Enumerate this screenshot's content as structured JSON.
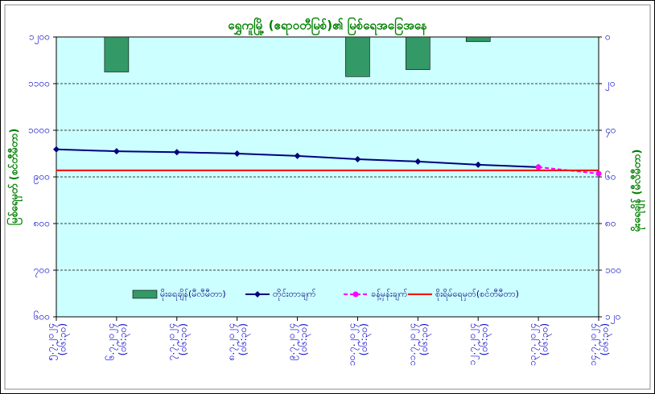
{
  "chart_data": {
    "type": "combo",
    "title": "ရွှေကူမြို့ (ဧရာဝတီမြစ်)၏ မြစ်ရေအခြေအနေ",
    "y_label": "မြစ်ရေမှတ် (စင်တီမီတာ)",
    "y2_label": "မိုးရေချိန် (မီလီမီတာ)",
    "categories": [
      "၅.၇.၂၀၂၄",
      "၆.၇.၂၀၂၄",
      "၇.၇.၂၀၂၄",
      "၈.၇.၂၀၂၄",
      "၉.၇.၂၀၂၄",
      "၁၀.၇.၂၀၂၄",
      "၁၁.၇.၂၀၂၄",
      "၁၂.၇.၂၀၂၄",
      "၁၃.၇.၂၀၂၄",
      "၁၄.၇.၂၀၂၄"
    ],
    "times": [
      "(၀၆:၃၀)",
      "(၀၆:၃၀)",
      "(၀၆:၃၀)",
      "(၀၆:၃၀)",
      "(၀၆:၃၀)",
      "(၀၆:၃၀)",
      "(၀၆:၃၀)",
      "(၀၆:၃၀)",
      "(၀၆:၃၀)",
      "(၀၆:၃၀)"
    ],
    "ylim": [
      600,
      1200
    ],
    "yticks": [
      {
        "value": 600,
        "label": "၆၀၀"
      },
      {
        "value": 700,
        "label": "၇၀၀"
      },
      {
        "value": 800,
        "label": "၈၀၀"
      },
      {
        "value": 900,
        "label": "၉၀၀"
      },
      {
        "value": 1000,
        "label": "၁၀၀၀"
      },
      {
        "value": 1100,
        "label": "၁၁၀၀"
      },
      {
        "value": 1200,
        "label": "၁၂၀၀"
      }
    ],
    "y2lim": [
      0,
      120
    ],
    "y2_inverted": true,
    "y2ticks": [
      {
        "value": 0,
        "label": "၀"
      },
      {
        "value": 20,
        "label": "၂၀"
      },
      {
        "value": 40,
        "label": "၄၀"
      },
      {
        "value": 60,
        "label": "၆၀"
      },
      {
        "value": 80,
        "label": "၈၀"
      },
      {
        "value": 100,
        "label": "၁၀၀"
      },
      {
        "value": 120,
        "label": "၁၂၀"
      }
    ],
    "grid": true,
    "series": [
      {
        "name": "မိုးရေချိန်(မီလီမီတာ)",
        "kind": "bar",
        "axis": "y2",
        "color": "#339966",
        "values": [
          null,
          15,
          null,
          null,
          null,
          17,
          14,
          2,
          null,
          null
        ]
      },
      {
        "name": "တိုင်းတာချက်",
        "kind": "line",
        "marker": "diamond",
        "color": "#000080",
        "values": [
          959,
          955,
          953,
          950,
          945,
          938,
          933,
          926,
          921,
          null
        ]
      },
      {
        "name": "ခန့်မှန်းချက်",
        "kind": "line",
        "marker": "circle",
        "dashed": true,
        "color": "#ff00ff",
        "values": [
          null,
          null,
          null,
          null,
          null,
          null,
          null,
          null,
          921,
          907
        ]
      },
      {
        "name": "စိုးရိမ်ရေမှတ်(စင်တီမီတာ)",
        "kind": "hline",
        "color": "#ff0000",
        "value": 914
      }
    ]
  }
}
